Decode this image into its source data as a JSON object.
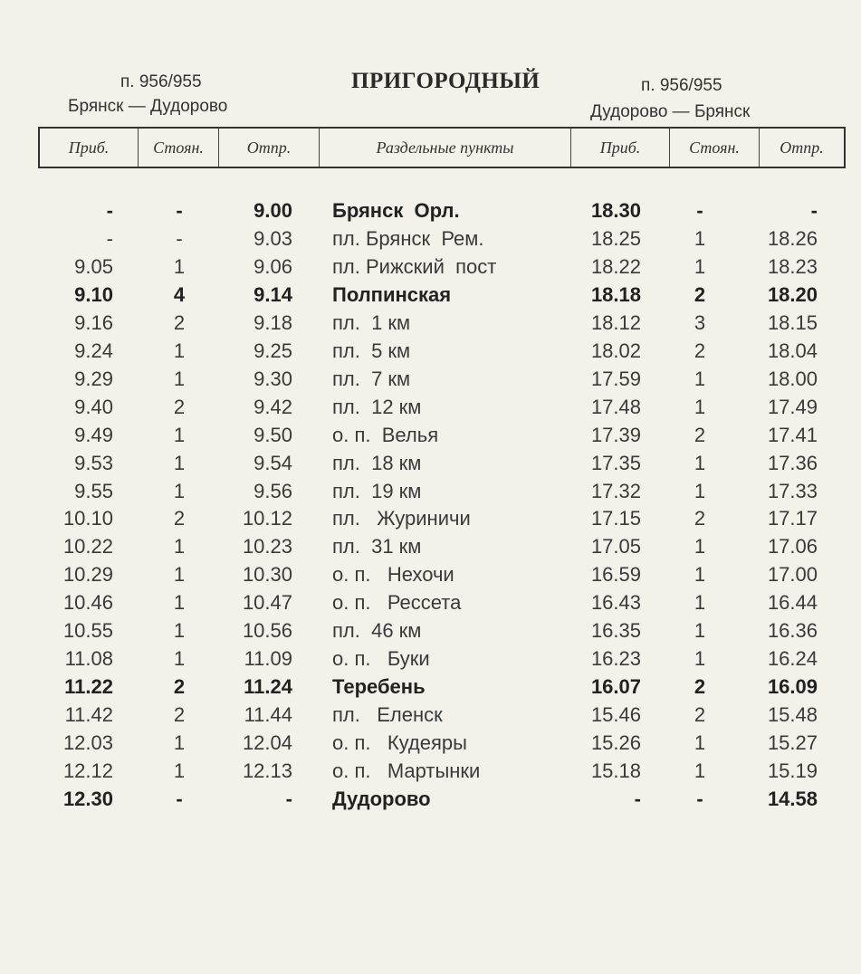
{
  "header": {
    "title": "ПРИГОРОДНЫЙ",
    "left_train": "п. 956/955",
    "left_route": "Брянск — Дудорово",
    "right_train": "п. 956/955",
    "right_route": "Дудорово — Брянск"
  },
  "columns": [
    "Приб.",
    "Стоян.",
    "Отпр.",
    "Раздельные пункты",
    "Приб.",
    "Стоян.",
    "Отпр."
  ],
  "rows": [
    {
      "arr": "-",
      "stop": "-",
      "dep": "9.00",
      "station": "Брянск  Орл.",
      "r_arr": "18.30",
      "r_stop": "-",
      "r_dep": "-",
      "bold": true
    },
    {
      "arr": "-",
      "stop": "-",
      "dep": "9.03",
      "station": "пл. Брянск  Рем.",
      "r_arr": "18.25",
      "r_stop": "1",
      "r_dep": "18.26",
      "bold": false
    },
    {
      "arr": "9.05",
      "stop": "1",
      "dep": "9.06",
      "station": "пл. Рижский  пост",
      "r_arr": "18.22",
      "r_stop": "1",
      "r_dep": "18.23",
      "bold": false
    },
    {
      "arr": "9.10",
      "stop": "4",
      "dep": "9.14",
      "station": "Полпинская",
      "r_arr": "18.18",
      "r_stop": "2",
      "r_dep": "18.20",
      "bold": true
    },
    {
      "arr": "9.16",
      "stop": "2",
      "dep": "9.18",
      "station": "пл.  1 км",
      "r_arr": "18.12",
      "r_stop": "3",
      "r_dep": "18.15",
      "bold": false
    },
    {
      "arr": "9.24",
      "stop": "1",
      "dep": "9.25",
      "station": "пл.  5 км",
      "r_arr": "18.02",
      "r_stop": "2",
      "r_dep": "18.04",
      "bold": false
    },
    {
      "arr": "9.29",
      "stop": "1",
      "dep": "9.30",
      "station": "пл.  7 км",
      "r_arr": "17.59",
      "r_stop": "1",
      "r_dep": "18.00",
      "bold": false
    },
    {
      "arr": "9.40",
      "stop": "2",
      "dep": "9.42",
      "station": "пл.  12 км",
      "r_arr": "17.48",
      "r_stop": "1",
      "r_dep": "17.49",
      "bold": false
    },
    {
      "arr": "9.49",
      "stop": "1",
      "dep": "9.50",
      "station": "о. п.  Велья",
      "r_arr": "17.39",
      "r_stop": "2",
      "r_dep": "17.41",
      "bold": false
    },
    {
      "arr": "9.53",
      "stop": "1",
      "dep": "9.54",
      "station": "пл.  18 км",
      "r_arr": "17.35",
      "r_stop": "1",
      "r_dep": "17.36",
      "bold": false
    },
    {
      "arr": "9.55",
      "stop": "1",
      "dep": "9.56",
      "station": "пл.  19 км",
      "r_arr": "17.32",
      "r_stop": "1",
      "r_dep": "17.33",
      "bold": false
    },
    {
      "arr": "10.10",
      "stop": "2",
      "dep": "10.12",
      "station": "пл.   Журиничи",
      "r_arr": "17.15",
      "r_stop": "2",
      "r_dep": "17.17",
      "bold": false
    },
    {
      "arr": "10.22",
      "stop": "1",
      "dep": "10.23",
      "station": "пл.  31 км",
      "r_arr": "17.05",
      "r_stop": "1",
      "r_dep": "17.06",
      "bold": false
    },
    {
      "arr": "10.29",
      "stop": "1",
      "dep": "10.30",
      "station": "о. п.   Нехочи",
      "r_arr": "16.59",
      "r_stop": "1",
      "r_dep": "17.00",
      "bold": false
    },
    {
      "arr": "10.46",
      "stop": "1",
      "dep": "10.47",
      "station": "о. п.   Рессета",
      "r_arr": "16.43",
      "r_stop": "1",
      "r_dep": "16.44",
      "bold": false
    },
    {
      "arr": "10.55",
      "stop": "1",
      "dep": "10.56",
      "station": "пл.  46 км",
      "r_arr": "16.35",
      "r_stop": "1",
      "r_dep": "16.36",
      "bold": false
    },
    {
      "arr": "11.08",
      "stop": "1",
      "dep": "11.09",
      "station": "о. п.   Буки",
      "r_arr": "16.23",
      "r_stop": "1",
      "r_dep": "16.24",
      "bold": false
    },
    {
      "arr": "11.22",
      "stop": "2",
      "dep": "11.24",
      "station": "Теребень",
      "r_arr": "16.07",
      "r_stop": "2",
      "r_dep": "16.09",
      "bold": true
    },
    {
      "arr": "11.42",
      "stop": "2",
      "dep": "11.44",
      "station": "пл.   Еленск",
      "r_arr": "15.46",
      "r_stop": "2",
      "r_dep": "15.48",
      "bold": false
    },
    {
      "arr": "12.03",
      "stop": "1",
      "dep": "12.04",
      "station": "о. п.   Кудеяры",
      "r_arr": "15.26",
      "r_stop": "1",
      "r_dep": "15.27",
      "bold": false
    },
    {
      "arr": "12.12",
      "stop": "1",
      "dep": "12.13",
      "station": "о. п.   Мартынки",
      "r_arr": "15.18",
      "r_stop": "1",
      "r_dep": "15.19",
      "bold": false
    },
    {
      "arr": "12.30",
      "stop": "-",
      "dep": "-",
      "station": "Дудорово",
      "r_arr": "-",
      "r_stop": "-",
      "r_dep": "14.58",
      "bold": true
    }
  ]
}
